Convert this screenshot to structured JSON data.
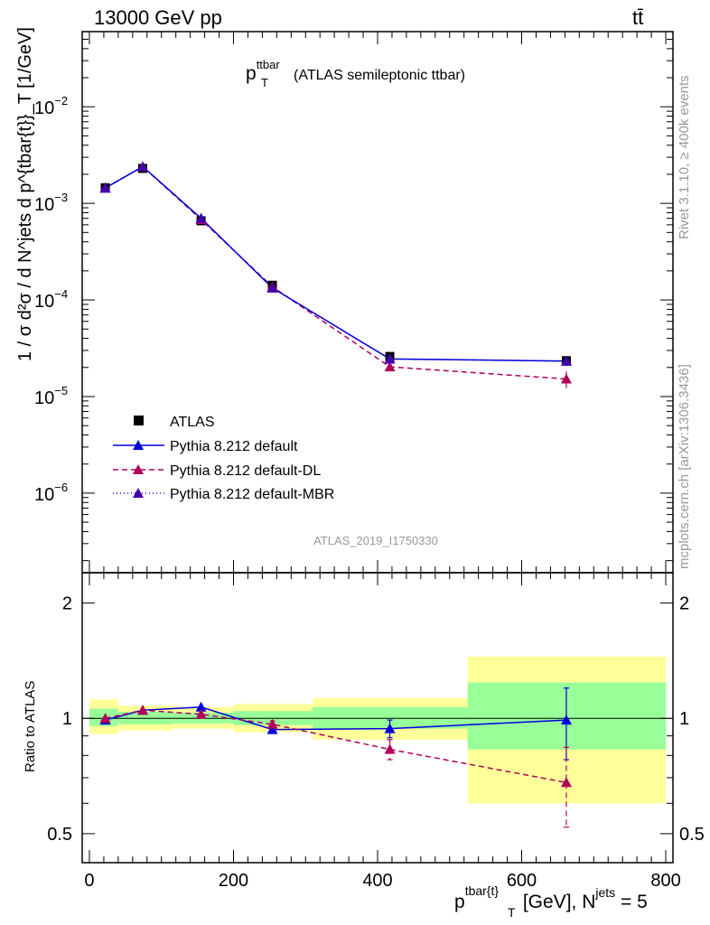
{
  "header": {
    "process": "13000 GeV pp",
    "top_symbol": "tt̄",
    "side_rivet": "Rivet 3.1.10, ≥ 400k events",
    "side_mcplots": "mcplots.cern.ch [arXiv:1306.3436]",
    "analysis_id": "ATLAS_2019_I1750330"
  },
  "chart_data": [
    {
      "panel": "main",
      "type": "line",
      "title_main": "p",
      "title_sup": "ttbar",
      "title_sub": "T",
      "title_rest": "(ATLAS semileptonic ttbar)",
      "ylabel": "1 / σ d²σ / d N^jets d p^{tbar{t}}_T [1/GeV]",
      "yscale": "log",
      "ylim": [
        1.5e-07,
        0.06
      ],
      "xlim": [
        -10,
        810
      ],
      "yticks": [
        {
          "value": 0.01,
          "mant": "10",
          "exp": "−2"
        },
        {
          "value": 0.001,
          "mant": "10",
          "exp": "−3"
        },
        {
          "value": 0.0001,
          "mant": "10",
          "exp": "−4"
        },
        {
          "value": 1e-05,
          "mant": "10",
          "exp": "−5"
        },
        {
          "value": 1e-06,
          "mant": "10",
          "exp": "−6"
        }
      ],
      "x": [
        22,
        74,
        155,
        254,
        417,
        662
      ],
      "series": [
        {
          "name": "ATLAS",
          "style": "data",
          "color": "#000000",
          "values": [
            0.00145,
            0.0023,
            0.00066,
            0.000142,
            2.6e-05,
            2.35e-05
          ],
          "err": [
            7e-05,
            0.00012,
            3e-05,
            8e-06,
            1.8e-06,
            2.8e-06
          ]
        },
        {
          "name": "Pythia 8.212 default",
          "style": "solid",
          "color": "#0000dd",
          "values": [
            0.00144,
            0.0024,
            0.0007,
            0.000133,
            2.45e-05,
            2.33e-05
          ],
          "err": [
            0,
            0,
            0,
            0,
            0,
            2.5e-06
          ]
        },
        {
          "name": "Pythia 8.212 default-DL",
          "style": "dashed",
          "color": "#b0005c",
          "values": [
            0.00145,
            0.0024,
            0.00068,
            0.000137,
            2.03e-05,
            1.52e-05
          ],
          "err": [
            0,
            0,
            0,
            0,
            0,
            3e-06
          ]
        },
        {
          "name": "Pythia 8.212 default-MBR",
          "style": "dotted",
          "color": "#4400aa",
          "values": [
            0.00144,
            0.0024,
            0.0007,
            0.000133,
            2.45e-05,
            2.33e-05
          ],
          "err": [
            0,
            0,
            0,
            0,
            0,
            0
          ]
        }
      ]
    },
    {
      "panel": "ratio",
      "type": "line",
      "ylabel": "Ratio to ATLAS",
      "xlabel_main": "p",
      "xlabel_sup": "tbar{t}",
      "xlabel_sub": "T",
      "xlabel_rest": " [GeV], N",
      "xlabel_sup2": "jets",
      "xlabel_end": " = 5",
      "yscale": "log",
      "ylim": [
        0.42,
        2.4
      ],
      "xlim": [
        -10,
        810
      ],
      "yticks": [
        {
          "value": 2,
          "label": "2"
        },
        {
          "value": 1,
          "label": "1"
        },
        {
          "value": 0.5,
          "label": "0.5"
        }
      ],
      "xticks": [
        {
          "value": 0,
          "label": "0"
        },
        {
          "value": 200,
          "label": "200"
        },
        {
          "value": 400,
          "label": "400"
        },
        {
          "value": 600,
          "label": "600"
        },
        {
          "value": 800,
          "label": "800"
        }
      ],
      "bins": [
        {
          "lo": 0,
          "hi": 40,
          "yellow": [
            0.91,
            1.12
          ],
          "green": [
            0.955,
            1.06
          ]
        },
        {
          "lo": 40,
          "hi": 115,
          "yellow": [
            0.93,
            1.08
          ],
          "green": [
            0.965,
            1.04
          ]
        },
        {
          "lo": 115,
          "hi": 200,
          "yellow": [
            0.94,
            1.07
          ],
          "green": [
            0.97,
            1.035
          ]
        },
        {
          "lo": 200,
          "hi": 310,
          "yellow": [
            0.92,
            1.09
          ],
          "green": [
            0.96,
            1.045
          ]
        },
        {
          "lo": 310,
          "hi": 525,
          "yellow": [
            0.88,
            1.13
          ],
          "green": [
            0.94,
            1.07
          ]
        },
        {
          "lo": 525,
          "hi": 800,
          "yellow": [
            0.6,
            1.45
          ],
          "green": [
            0.83,
            1.24
          ]
        }
      ],
      "x": [
        22,
        74,
        155,
        254,
        417,
        662
      ],
      "series": [
        {
          "name": "Pythia 8.212 default",
          "color": "#0000dd",
          "style": "solid",
          "values": [
            0.99,
            1.05,
            1.07,
            0.935,
            0.94,
            0.99
          ],
          "err": [
            0,
            0,
            0,
            0.02,
            0.05,
            0.21
          ]
        },
        {
          "name": "Pythia 8.212 default-DL",
          "color": "#b0005c",
          "style": "dashed",
          "values": [
            1.0,
            1.05,
            1.025,
            0.965,
            0.83,
            0.68
          ],
          "err": [
            0,
            0,
            0,
            0.02,
            0.05,
            0.16
          ]
        }
      ]
    }
  ]
}
